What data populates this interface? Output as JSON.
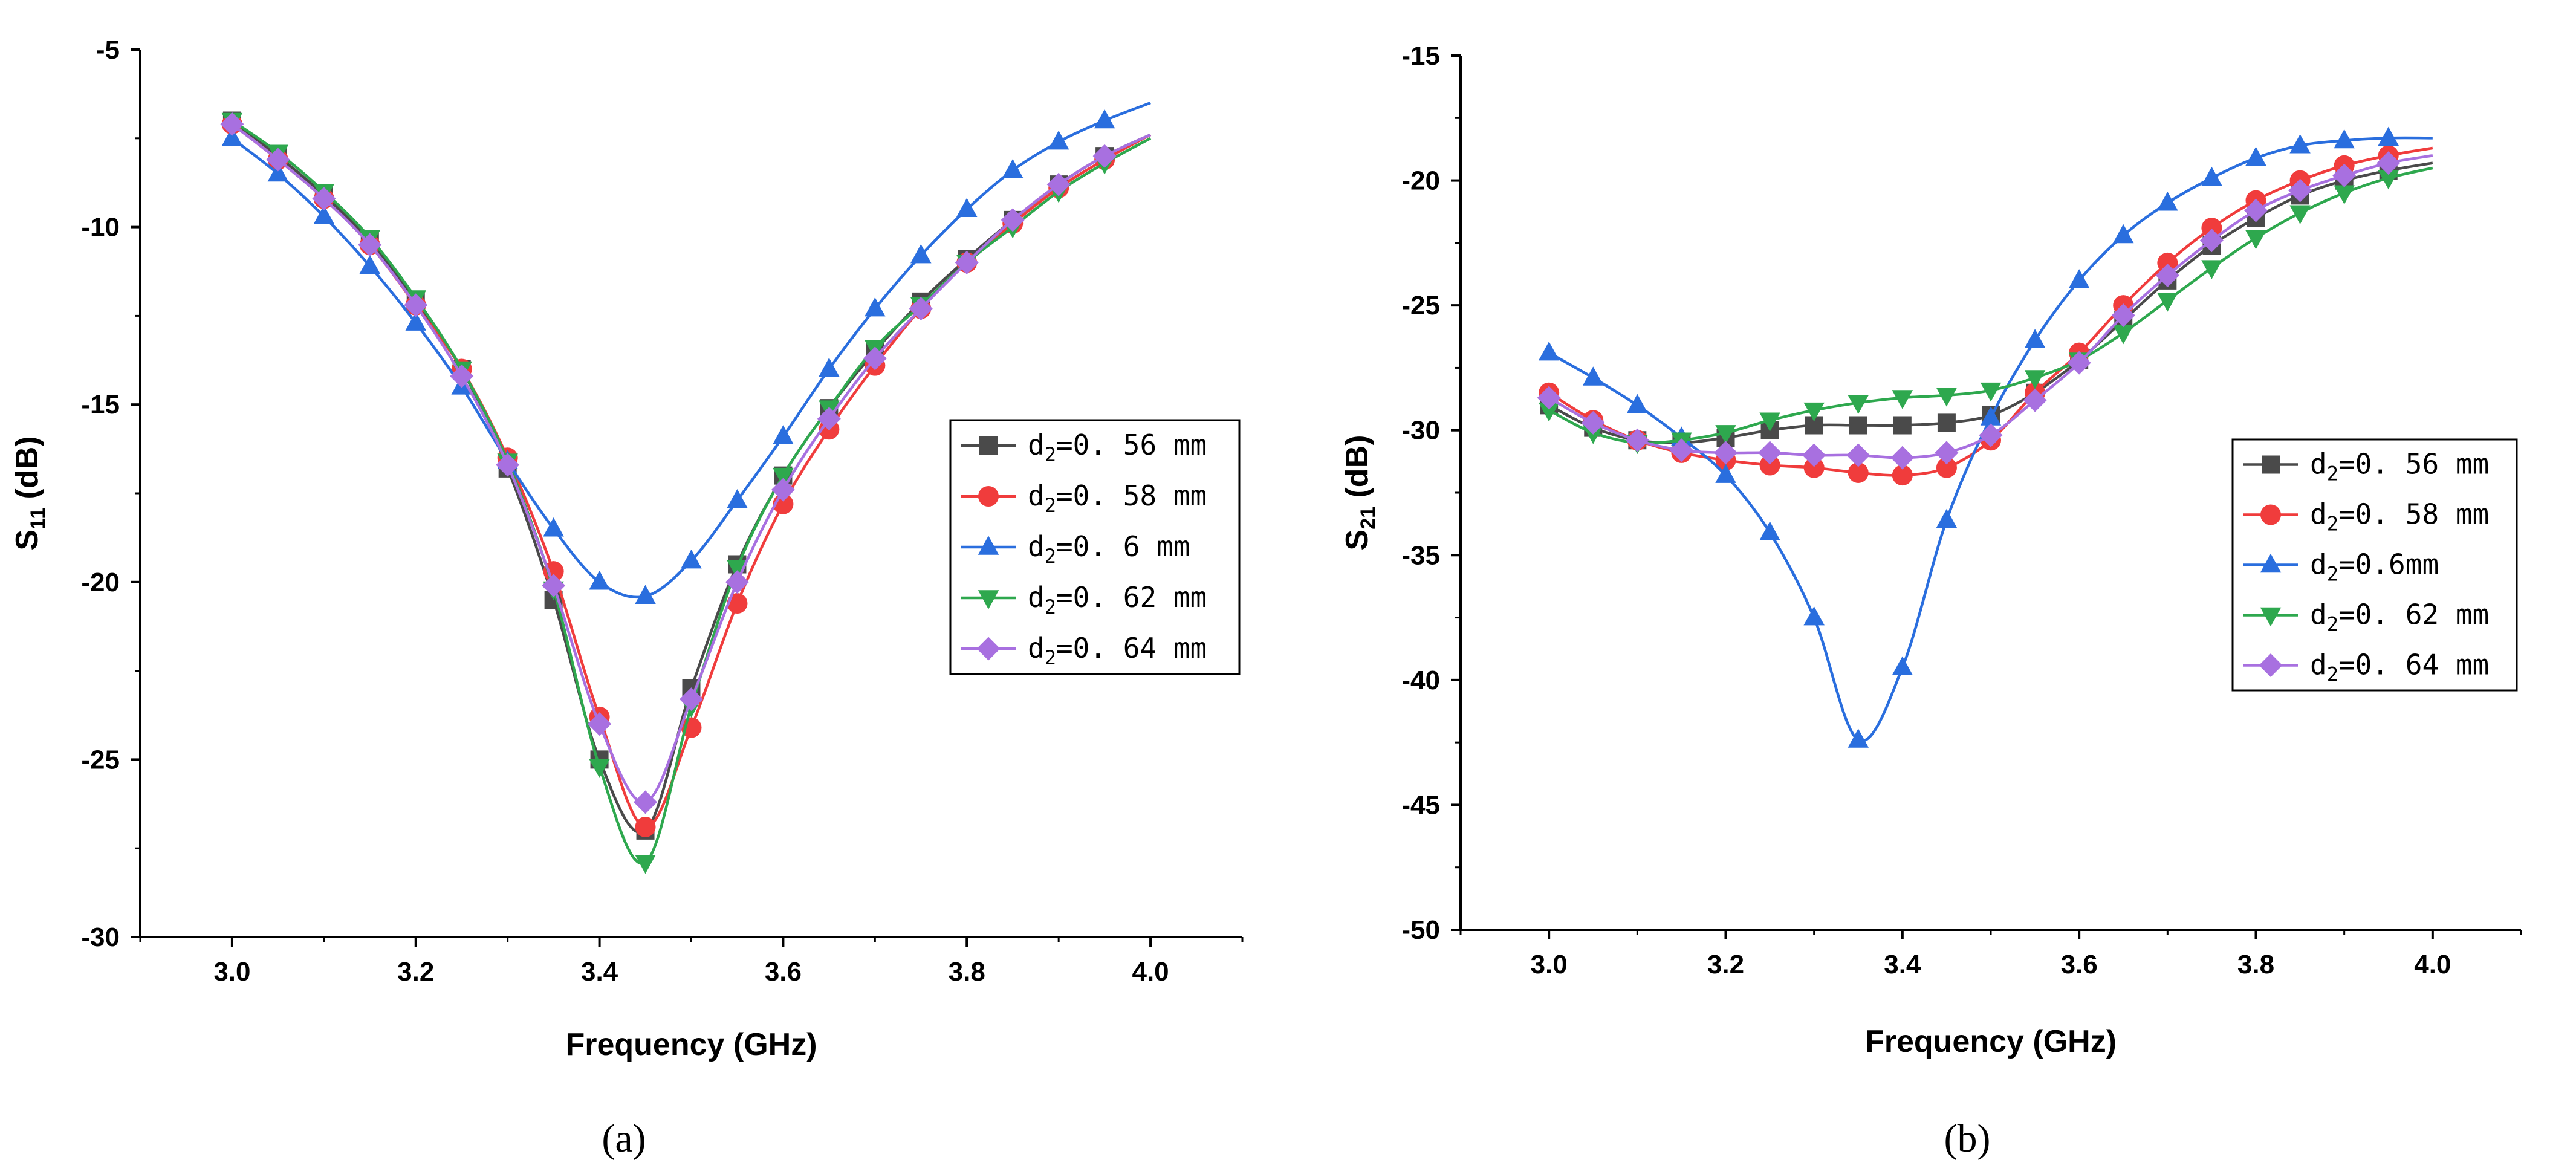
{
  "chart_data": [
    {
      "type": "line",
      "caption": "(a)",
      "xlabel": "Frequency (GHz)",
      "ylabel_main": "S",
      "ylabel_sub": "11",
      "ylabel_unit": " (dB)",
      "xlim": [
        2.9,
        4.1
      ],
      "ylim": [
        -30,
        -5
      ],
      "xticks": [
        3.0,
        3.2,
        3.4,
        3.6,
        3.8,
        4.0
      ],
      "xtick_labels": [
        "3.0",
        "3.2",
        "3.4",
        "3.6",
        "3.8",
        "4.0"
      ],
      "yticks": [
        -5,
        -10,
        -15,
        -20,
        -25,
        -30
      ],
      "ytick_labels": [
        "-5",
        "-10",
        "-15",
        "-20",
        "-25",
        "-30"
      ],
      "legend_position": "right",
      "x": [
        3.0,
        3.05,
        3.1,
        3.15,
        3.2,
        3.25,
        3.3,
        3.35,
        3.4,
        3.45,
        3.5,
        3.55,
        3.6,
        3.65,
        3.7,
        3.75,
        3.8,
        3.85,
        3.9,
        3.95,
        4.0
      ],
      "series": [
        {
          "legend_main": "d",
          "legend_sub": "2",
          "legend_rest": "=0. 56  mm",
          "color": "#4a4a4a",
          "marker": "square",
          "values": [
            -7.0,
            -8.0,
            -9.1,
            -10.4,
            -12.1,
            -14.0,
            -16.8,
            -20.5,
            -25.0,
            -27.0,
            -23.0,
            -19.5,
            -17.0,
            -15.1,
            -13.5,
            -12.1,
            -10.9,
            -9.8,
            -8.8,
            -8.0,
            -7.4
          ]
        },
        {
          "legend_main": "d",
          "legend_sub": "2",
          "legend_rest": "=0. 58  mm",
          "color": "#f03c3c",
          "marker": "circle",
          "values": [
            -7.1,
            -8.1,
            -9.2,
            -10.5,
            -12.2,
            -14.0,
            -16.5,
            -19.7,
            -23.8,
            -26.9,
            -24.1,
            -20.6,
            -17.8,
            -15.7,
            -13.9,
            -12.3,
            -11.0,
            -9.9,
            -8.9,
            -8.1,
            -7.4
          ]
        },
        {
          "legend_main": "d",
          "legend_sub": "2",
          "legend_rest": "=0. 6  mm",
          "color": "#2a6ede",
          "marker": "triangle-up",
          "values": [
            -7.5,
            -8.5,
            -9.7,
            -11.1,
            -12.7,
            -14.5,
            -16.6,
            -18.5,
            -20.0,
            -20.4,
            -19.4,
            -17.7,
            -15.9,
            -14.0,
            -12.3,
            -10.8,
            -9.5,
            -8.4,
            -7.6,
            -7.0,
            -6.5
          ]
        },
        {
          "legend_main": "d",
          "legend_sub": "2",
          "legend_rest": "=0. 62  mm",
          "color": "#2ea84e",
          "marker": "triangle-down",
          "values": [
            -7.0,
            -7.9,
            -9.0,
            -10.3,
            -12.0,
            -14.0,
            -16.6,
            -20.2,
            -25.2,
            -27.9,
            -23.5,
            -19.6,
            -17.0,
            -15.1,
            -13.4,
            -12.2,
            -11.0,
            -10.0,
            -9.0,
            -8.2,
            -7.5
          ]
        },
        {
          "legend_main": "d",
          "legend_sub": "2",
          "legend_rest": "=0. 64  mm",
          "color": "#a870e0",
          "marker": "diamond",
          "values": [
            -7.1,
            -8.1,
            -9.2,
            -10.5,
            -12.2,
            -14.2,
            -16.7,
            -20.1,
            -24.0,
            -26.2,
            -23.3,
            -20.0,
            -17.4,
            -15.4,
            -13.7,
            -12.3,
            -11.0,
            -9.8,
            -8.8,
            -8.0,
            -7.4
          ]
        }
      ]
    },
    {
      "type": "line",
      "caption": "(b)",
      "xlabel": "Frequency (GHz)",
      "ylabel_main": "S",
      "ylabel_sub": "21",
      "ylabel_unit": " (dB)",
      "xlim": [
        2.9,
        4.1
      ],
      "ylim": [
        -50,
        -15
      ],
      "xticks": [
        3.0,
        3.2,
        3.4,
        3.6,
        3.8,
        4.0
      ],
      "xtick_labels": [
        "3.0",
        "3.2",
        "3.4",
        "3.6",
        "3.8",
        "4.0"
      ],
      "yticks": [
        -15,
        -20,
        -25,
        -30,
        -35,
        -40,
        -45,
        -50
      ],
      "ytick_labels": [
        "-15",
        "-20",
        "-25",
        "-30",
        "-35",
        "-40",
        "-45",
        "-50"
      ],
      "legend_position": "right",
      "x": [
        3.0,
        3.05,
        3.1,
        3.15,
        3.2,
        3.25,
        3.3,
        3.35,
        3.4,
        3.45,
        3.5,
        3.55,
        3.6,
        3.65,
        3.7,
        3.75,
        3.8,
        3.85,
        3.9,
        3.95,
        4.0
      ],
      "series": [
        {
          "legend_main": "d",
          "legend_sub": "2",
          "legend_rest": "=0. 56  mm",
          "color": "#4a4a4a",
          "marker": "square",
          "values": [
            -29.0,
            -29.9,
            -30.4,
            -30.5,
            -30.3,
            -30.0,
            -29.8,
            -29.8,
            -29.8,
            -29.7,
            -29.4,
            -28.5,
            -27.2,
            -25.6,
            -24.0,
            -22.6,
            -21.5,
            -20.6,
            -20.0,
            -19.6,
            -19.3
          ]
        },
        {
          "legend_main": "d",
          "legend_sub": "2",
          "legend_rest": "=0. 58  mm",
          "color": "#f03c3c",
          "marker": "circle",
          "values": [
            -28.5,
            -29.6,
            -30.4,
            -30.9,
            -31.2,
            -31.4,
            -31.5,
            -31.7,
            -31.8,
            -31.5,
            -30.4,
            -28.5,
            -26.9,
            -25.0,
            -23.3,
            -21.9,
            -20.8,
            -20.0,
            -19.4,
            -19.0,
            -18.7
          ]
        },
        {
          "legend_main": "d",
          "legend_sub": "2",
          "legend_rest": "=0.6mm",
          "color": "#2a6ede",
          "marker": "triangle-up",
          "values": [
            -26.9,
            -27.9,
            -29.0,
            -30.3,
            -31.8,
            -34.1,
            -37.5,
            -42.4,
            -39.5,
            -33.6,
            -29.5,
            -26.4,
            -24.0,
            -22.2,
            -20.9,
            -19.9,
            -19.1,
            -18.6,
            -18.4,
            -18.3,
            -18.3
          ]
        },
        {
          "legend_main": "d",
          "legend_sub": "2",
          "legend_rest": "=0. 62  mm",
          "color": "#2ea84e",
          "marker": "triangle-down",
          "values": [
            -29.2,
            -30.1,
            -30.5,
            -30.4,
            -30.1,
            -29.6,
            -29.2,
            -28.9,
            -28.7,
            -28.6,
            -28.4,
            -27.9,
            -27.2,
            -26.1,
            -24.8,
            -23.5,
            -22.3,
            -21.3,
            -20.5,
            -19.9,
            -19.5
          ]
        },
        {
          "legend_main": "d",
          "legend_sub": "2",
          "legend_rest": "=0. 64  mm",
          "color": "#a870e0",
          "marker": "diamond",
          "values": [
            -28.7,
            -29.7,
            -30.4,
            -30.8,
            -30.9,
            -30.9,
            -31.0,
            -31.0,
            -31.1,
            -30.9,
            -30.2,
            -28.8,
            -27.3,
            -25.4,
            -23.8,
            -22.4,
            -21.2,
            -20.4,
            -19.8,
            -19.3,
            -19.0
          ]
        }
      ]
    }
  ]
}
